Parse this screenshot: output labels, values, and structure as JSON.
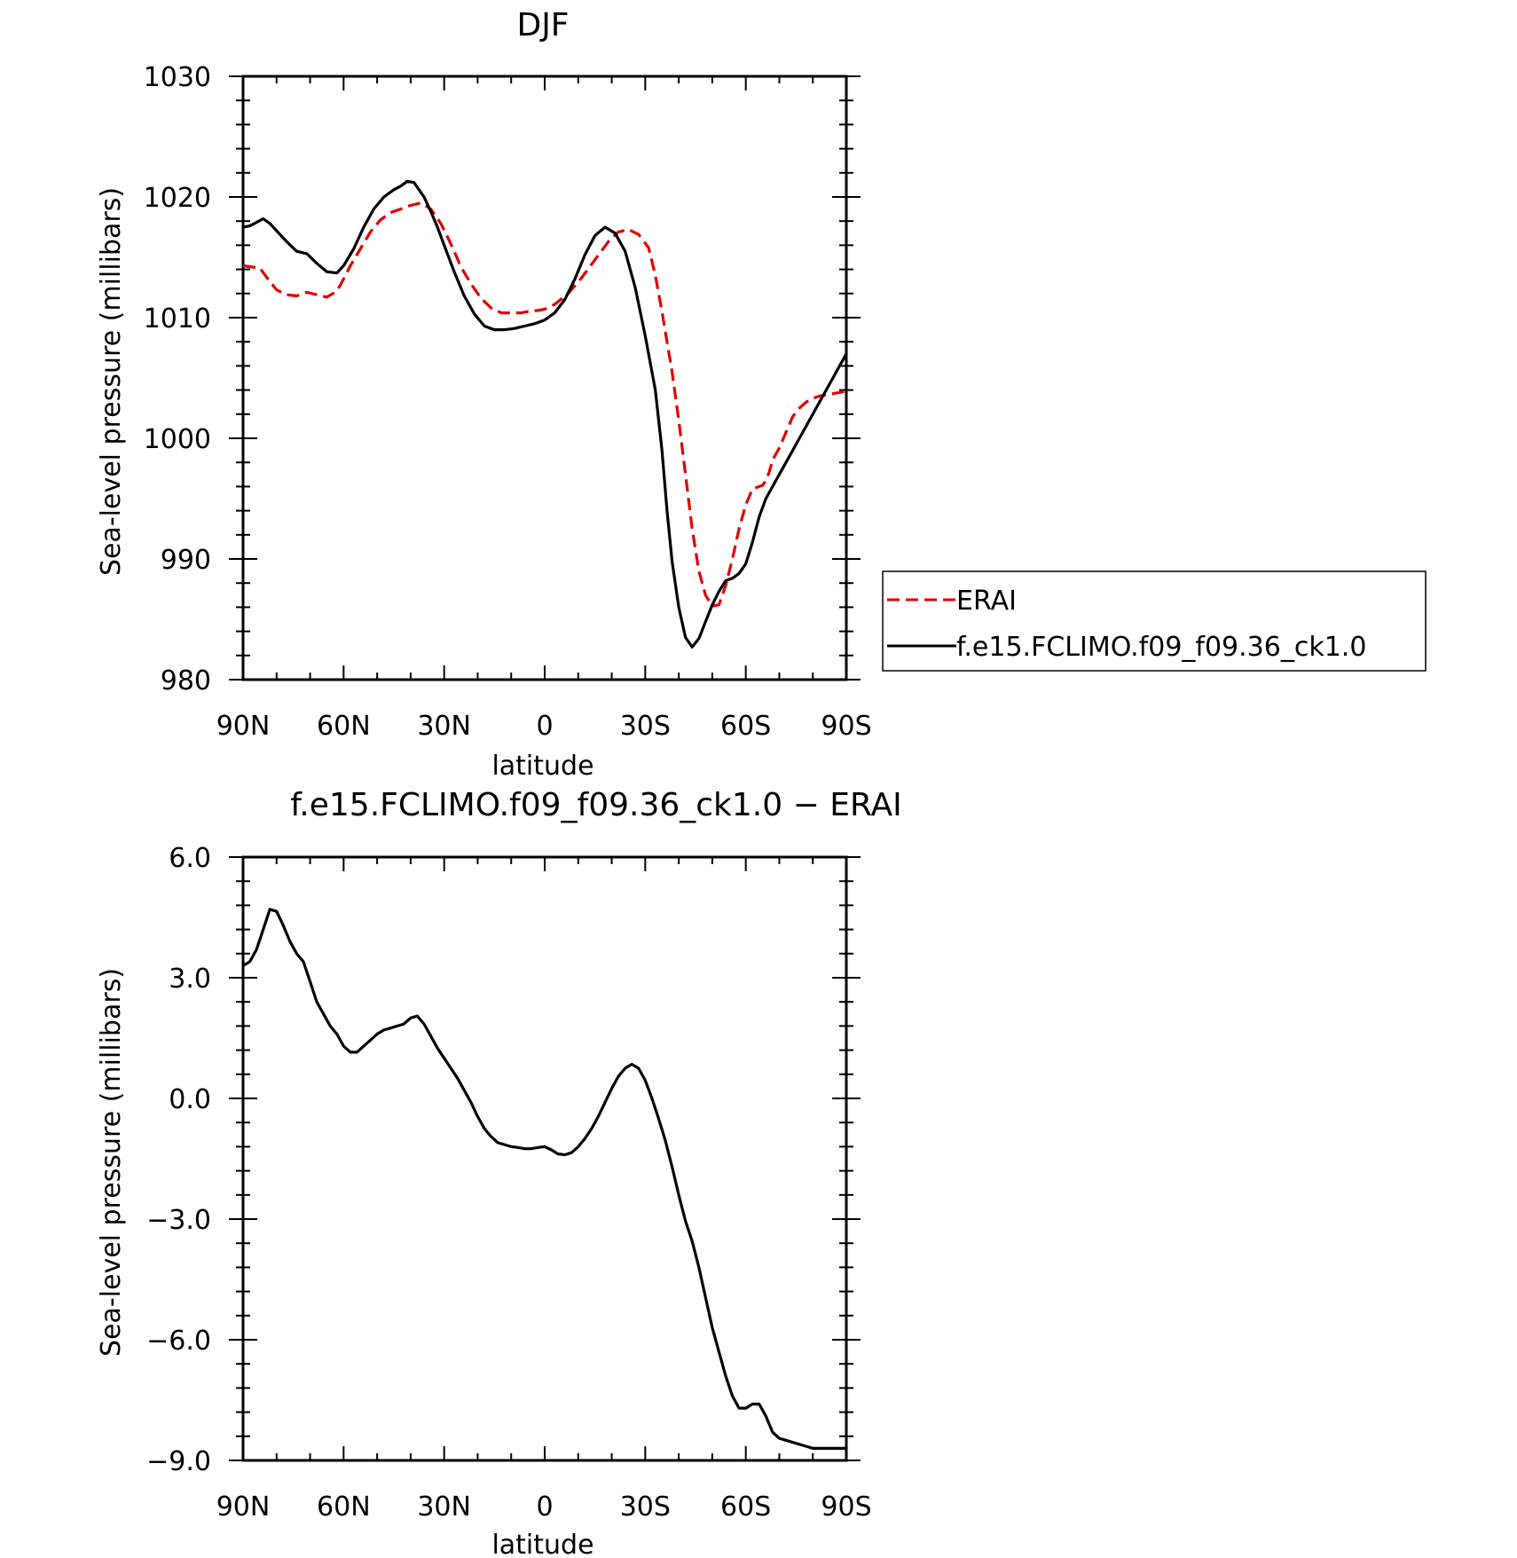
{
  "chart_data": [
    {
      "type": "line",
      "title": "DJF",
      "xlabel": "latitude",
      "ylabel": "Sea-level pressure (millibars)",
      "x_domain": [
        "90N",
        "90S"
      ],
      "x_ticks": [
        "90N",
        "60N",
        "30N",
        "0",
        "30S",
        "60S",
        "90S"
      ],
      "y_ticks": [
        "980",
        "990",
        "1000",
        "1010",
        "1020",
        "1030"
      ],
      "ylim": [
        980,
        1030
      ],
      "grid": false,
      "legend_position": "right",
      "series": [
        {
          "name": "ERAI",
          "color": "#e00000",
          "dash": "dashed",
          "lat": [
            90,
            85,
            82,
            80,
            77,
            74,
            71,
            68,
            65,
            62,
            60,
            58,
            55,
            52,
            49,
            46,
            43,
            40,
            37,
            34,
            31,
            29,
            27,
            25,
            22,
            19,
            16,
            13,
            10,
            7,
            5,
            2,
            0,
            -3,
            -7,
            -11,
            -15,
            -19,
            -22,
            -25,
            -28,
            -31,
            -33,
            -35,
            -36.5,
            -38,
            -40,
            -42,
            -44,
            -46,
            -48,
            -50,
            -52,
            -54,
            -56,
            -58,
            -60,
            -62,
            -64,
            -65,
            -66,
            -67,
            -68,
            -70,
            -72,
            -74,
            -76,
            -78,
            -80,
            -82,
            -84,
            -86,
            -88,
            -90
          ],
          "values": [
            1014.3,
            1014.1,
            1013.0,
            1012.3,
            1011.9,
            1011.8,
            1012.1,
            1011.9,
            1011.7,
            1012.2,
            1013.2,
            1014.3,
            1015.7,
            1017.1,
            1018.1,
            1018.7,
            1019.0,
            1019.3,
            1019.5,
            1019.0,
            1017.8,
            1016.7,
            1015.5,
            1014.2,
            1012.8,
            1011.6,
            1010.8,
            1010.4,
            1010.4,
            1010.4,
            1010.5,
            1010.6,
            1010.7,
            1011.1,
            1012.0,
            1013.3,
            1014.8,
            1016.3,
            1017.1,
            1017.3,
            1016.9,
            1015.8,
            1013.5,
            1010.5,
            1008.0,
            1005.5,
            1001.5,
            997.0,
            992.5,
            989.0,
            987.0,
            986.1,
            986.2,
            987.8,
            990.0,
            992.5,
            994.5,
            995.8,
            996.0,
            996.1,
            996.5,
            997.2,
            998.2,
            999.2,
            1000.5,
            1001.8,
            1002.5,
            1003.0,
            1003.3,
            1003.5,
            1003.6,
            1003.7,
            1003.8,
            1003.9
          ]
        },
        {
          "name": "f.e15.FCLIMO.f09_f09.36_ck1.0",
          "color": "#000000",
          "dash": "solid",
          "lat": [
            90,
            88,
            86,
            84,
            82,
            80,
            77,
            74,
            71,
            68,
            65,
            62,
            60,
            57,
            54,
            51,
            48,
            45,
            43,
            41,
            39,
            38,
            36,
            34,
            32,
            30,
            27,
            24,
            21,
            18,
            15,
            12,
            9,
            6,
            3,
            0,
            -3,
            -6,
            -9,
            -12,
            -15,
            -18,
            -21,
            -24,
            -27,
            -30,
            -33,
            -35,
            -36.5,
            -38,
            -40,
            -42,
            -44,
            -46,
            -48,
            -50,
            -52,
            -54,
            -56,
            -58,
            -60,
            -62,
            -64,
            -66,
            -68,
            -70,
            -72,
            -74,
            -76,
            -78,
            -80,
            -82,
            -84,
            -86,
            -88,
            -90
          ],
          "values": [
            1017.5,
            1017.6,
            1017.9,
            1018.2,
            1017.8,
            1017.2,
            1016.3,
            1015.5,
            1015.3,
            1014.5,
            1013.8,
            1013.7,
            1014.3,
            1015.7,
            1017.5,
            1019.0,
            1020.0,
            1020.6,
            1020.9,
            1021.3,
            1021.2,
            1020.8,
            1020.0,
            1018.8,
            1017.5,
            1016.0,
            1013.8,
            1011.8,
            1010.3,
            1009.3,
            1009.0,
            1009.0,
            1009.1,
            1009.3,
            1009.5,
            1009.8,
            1010.4,
            1011.5,
            1013.2,
            1015.2,
            1016.8,
            1017.5,
            1017.0,
            1015.5,
            1012.5,
            1008.5,
            1004.0,
            999.0,
            994.0,
            989.8,
            986.0,
            983.5,
            982.7,
            983.4,
            984.8,
            986.2,
            987.3,
            988.2,
            988.4,
            988.8,
            989.6,
            991.4,
            993.5,
            995.0,
            996.0,
            997.0,
            998.0,
            999.0,
            1000.0,
            1001.0,
            1002.0,
            1003.0,
            1004.0,
            1005.0,
            1006.0,
            1007.0
          ]
        }
      ]
    },
    {
      "type": "line",
      "title": "f.e15.FCLIMO.f09_f09.36_ck1.0 − ERAI",
      "xlabel": "latitude",
      "ylabel": "Sea-level pressure (millibars)",
      "x_domain": [
        "90N",
        "90S"
      ],
      "x_ticks": [
        "90N",
        "60N",
        "30N",
        "0",
        "30S",
        "60S",
        "90S"
      ],
      "y_ticks": [
        "−9.0",
        "−6.0",
        "−3.0",
        "0.0",
        "3.0",
        "6.0"
      ],
      "ylim": [
        -9,
        6
      ],
      "grid": false,
      "series": [
        {
          "color": "#000000",
          "dash": "solid",
          "lat": [
            90,
            88,
            86,
            84,
            82,
            80,
            78,
            76,
            74,
            72,
            70,
            68,
            66,
            64,
            62,
            60,
            58,
            56,
            54,
            52,
            50,
            48,
            46,
            44,
            42,
            40,
            38,
            36,
            34,
            32,
            30,
            28,
            26,
            24,
            22,
            20,
            18,
            16,
            14,
            12,
            10,
            8,
            6,
            4,
            2,
            0,
            -2,
            -4,
            -6,
            -8,
            -10,
            -12,
            -14,
            -16,
            -18,
            -20,
            -22,
            -24,
            -26,
            -28,
            -30,
            -32,
            -34,
            -36,
            -38,
            -40,
            -42,
            -44,
            -46,
            -48,
            -50,
            -52,
            -54,
            -56,
            -58,
            -60,
            -62,
            -64,
            -66,
            -68,
            -70,
            -72,
            -74,
            -76,
            -78,
            -80,
            -82,
            -84,
            -86,
            -88,
            -90
          ],
          "values": [
            3.3,
            3.4,
            3.7,
            4.2,
            4.7,
            4.65,
            4.3,
            3.9,
            3.6,
            3.4,
            2.9,
            2.4,
            2.1,
            1.8,
            1.6,
            1.3,
            1.15,
            1.15,
            1.3,
            1.45,
            1.6,
            1.7,
            1.75,
            1.8,
            1.85,
            2.0,
            2.05,
            1.85,
            1.55,
            1.25,
            1.0,
            0.75,
            0.5,
            0.2,
            -0.1,
            -0.45,
            -0.75,
            -0.95,
            -1.1,
            -1.15,
            -1.2,
            -1.22,
            -1.25,
            -1.25,
            -1.22,
            -1.2,
            -1.28,
            -1.38,
            -1.4,
            -1.35,
            -1.2,
            -1.0,
            -0.75,
            -0.45,
            -0.1,
            0.25,
            0.55,
            0.75,
            0.85,
            0.75,
            0.45,
            0.0,
            -0.5,
            -1.05,
            -1.7,
            -2.4,
            -3.05,
            -3.55,
            -4.2,
            -4.95,
            -5.7,
            -6.3,
            -6.9,
            -7.4,
            -7.7,
            -7.7,
            -7.6,
            -7.6,
            -7.9,
            -8.3,
            -8.45,
            -8.5,
            -8.55,
            -8.6,
            -8.65,
            -8.7,
            -8.7,
            -8.7,
            -8.7,
            -8.7,
            -8.7
          ]
        }
      ]
    }
  ]
}
